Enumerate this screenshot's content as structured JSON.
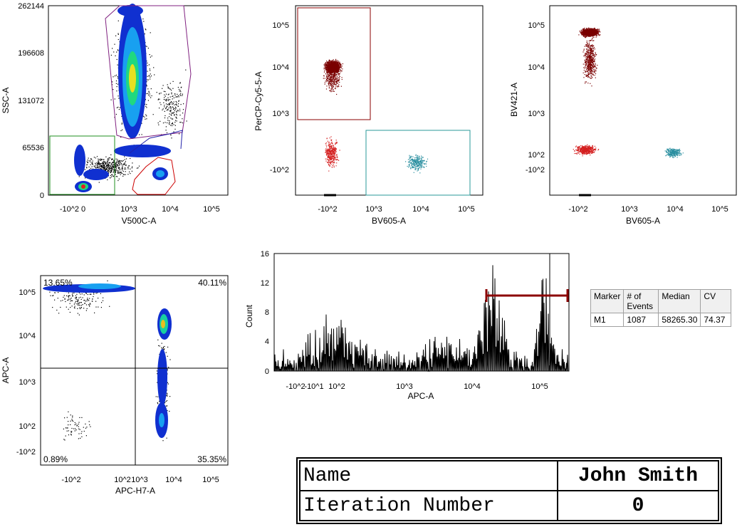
{
  "chart_data": [
    {
      "type": "scatter",
      "xlabel": "V500C-A",
      "ylabel": "SSC-A",
      "x_ticks": [
        "-10^2 0",
        "10^3",
        "10^4",
        "10^5"
      ],
      "y_ticks": [
        "0",
        "65536",
        "131072",
        "196608",
        "262144"
      ],
      "ylim": [
        0,
        262144
      ]
    },
    {
      "type": "scatter",
      "xlabel": "BV605-A",
      "ylabel": "PerCP-Cy5-5-A",
      "x_ticks": [
        "-10^2",
        "10^3",
        "10^4",
        "10^5"
      ],
      "y_ticks": [
        "-10^2",
        "10^3",
        "10^4",
        "10^5"
      ]
    },
    {
      "type": "scatter",
      "xlabel": "BV605-A",
      "ylabel": "BV421-A",
      "x_ticks": [
        "-10^2",
        "10^3",
        "10^4",
        "10^5"
      ],
      "y_ticks": [
        "-10^2",
        "10^2",
        "10^3",
        "10^4",
        "10^5"
      ]
    },
    {
      "type": "scatter",
      "xlabel": "APC-H7-A",
      "ylabel": "APC-A",
      "x_ticks": [
        "-10^2",
        "10^2",
        "10^3",
        "10^4",
        "10^5"
      ],
      "y_ticks": [
        "-10^2",
        "10^2",
        "10^3",
        "10^4",
        "10^5"
      ],
      "quadrants": {
        "top_left": "13.65%",
        "top_right": "40.11%",
        "bottom_left": "0.89%",
        "bottom_right": "35.35%"
      }
    },
    {
      "type": "bar",
      "xlabel": "APC-A",
      "ylabel": "Count",
      "x_ticks": [
        "-10^2",
        "-10^1",
        "10^2",
        "10^3",
        "10^4",
        "10^5"
      ],
      "y_ticks": [
        "0",
        "4",
        "8",
        "12",
        "16"
      ],
      "ylim": [
        0,
        16
      ],
      "marker": {
        "name": "M1",
        "events": "1087",
        "median": "58265.30",
        "cv": "74.37"
      }
    }
  ],
  "stats_table": {
    "headers": [
      "Marker",
      "# of Events",
      "Median",
      "CV"
    ],
    "row": [
      "M1",
      "1087",
      "58265.30",
      "74.37"
    ]
  },
  "info": {
    "name_label": "Name",
    "name_value": "John Smith",
    "iteration_label": "Iteration Number",
    "iteration_value": "0"
  },
  "colors": {
    "gate_purple": "#7f1f7f",
    "gate_green": "#1f8f1f",
    "gate_red": "#cc0000",
    "gate_blue": "#2222aa",
    "gate_maroon": "#8b0000",
    "gate_teal": "#2a9a9a",
    "dots_darkred": "#7a0000",
    "dots_red": "#d42020",
    "dots_teal": "#2a8fa0"
  }
}
